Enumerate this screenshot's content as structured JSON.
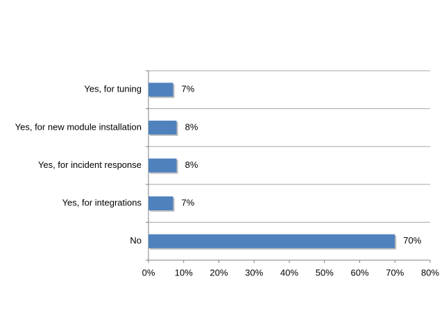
{
  "chart_data": {
    "type": "bar",
    "orientation": "horizontal",
    "categories": [
      "Yes, for tuning",
      "Yes, for new module installation",
      "Yes, for incident response",
      "Yes, for integrations",
      "No"
    ],
    "values": [
      7,
      8,
      8,
      7,
      70
    ],
    "value_labels": [
      "7%",
      "8%",
      "8%",
      "7%",
      "70%"
    ],
    "color": "#4f81bd",
    "xlim": [
      0,
      80
    ],
    "xticks": [
      {
        "value": 0,
        "label": "0%"
      },
      {
        "value": 10,
        "label": "10%"
      },
      {
        "value": 20,
        "label": "20%"
      },
      {
        "value": 30,
        "label": "30%"
      },
      {
        "value": 40,
        "label": "40%"
      },
      {
        "value": 50,
        "label": "50%"
      },
      {
        "value": 60,
        "label": "60%"
      },
      {
        "value": 70,
        "label": "70%"
      },
      {
        "value": 80,
        "label": "80%"
      }
    ]
  }
}
